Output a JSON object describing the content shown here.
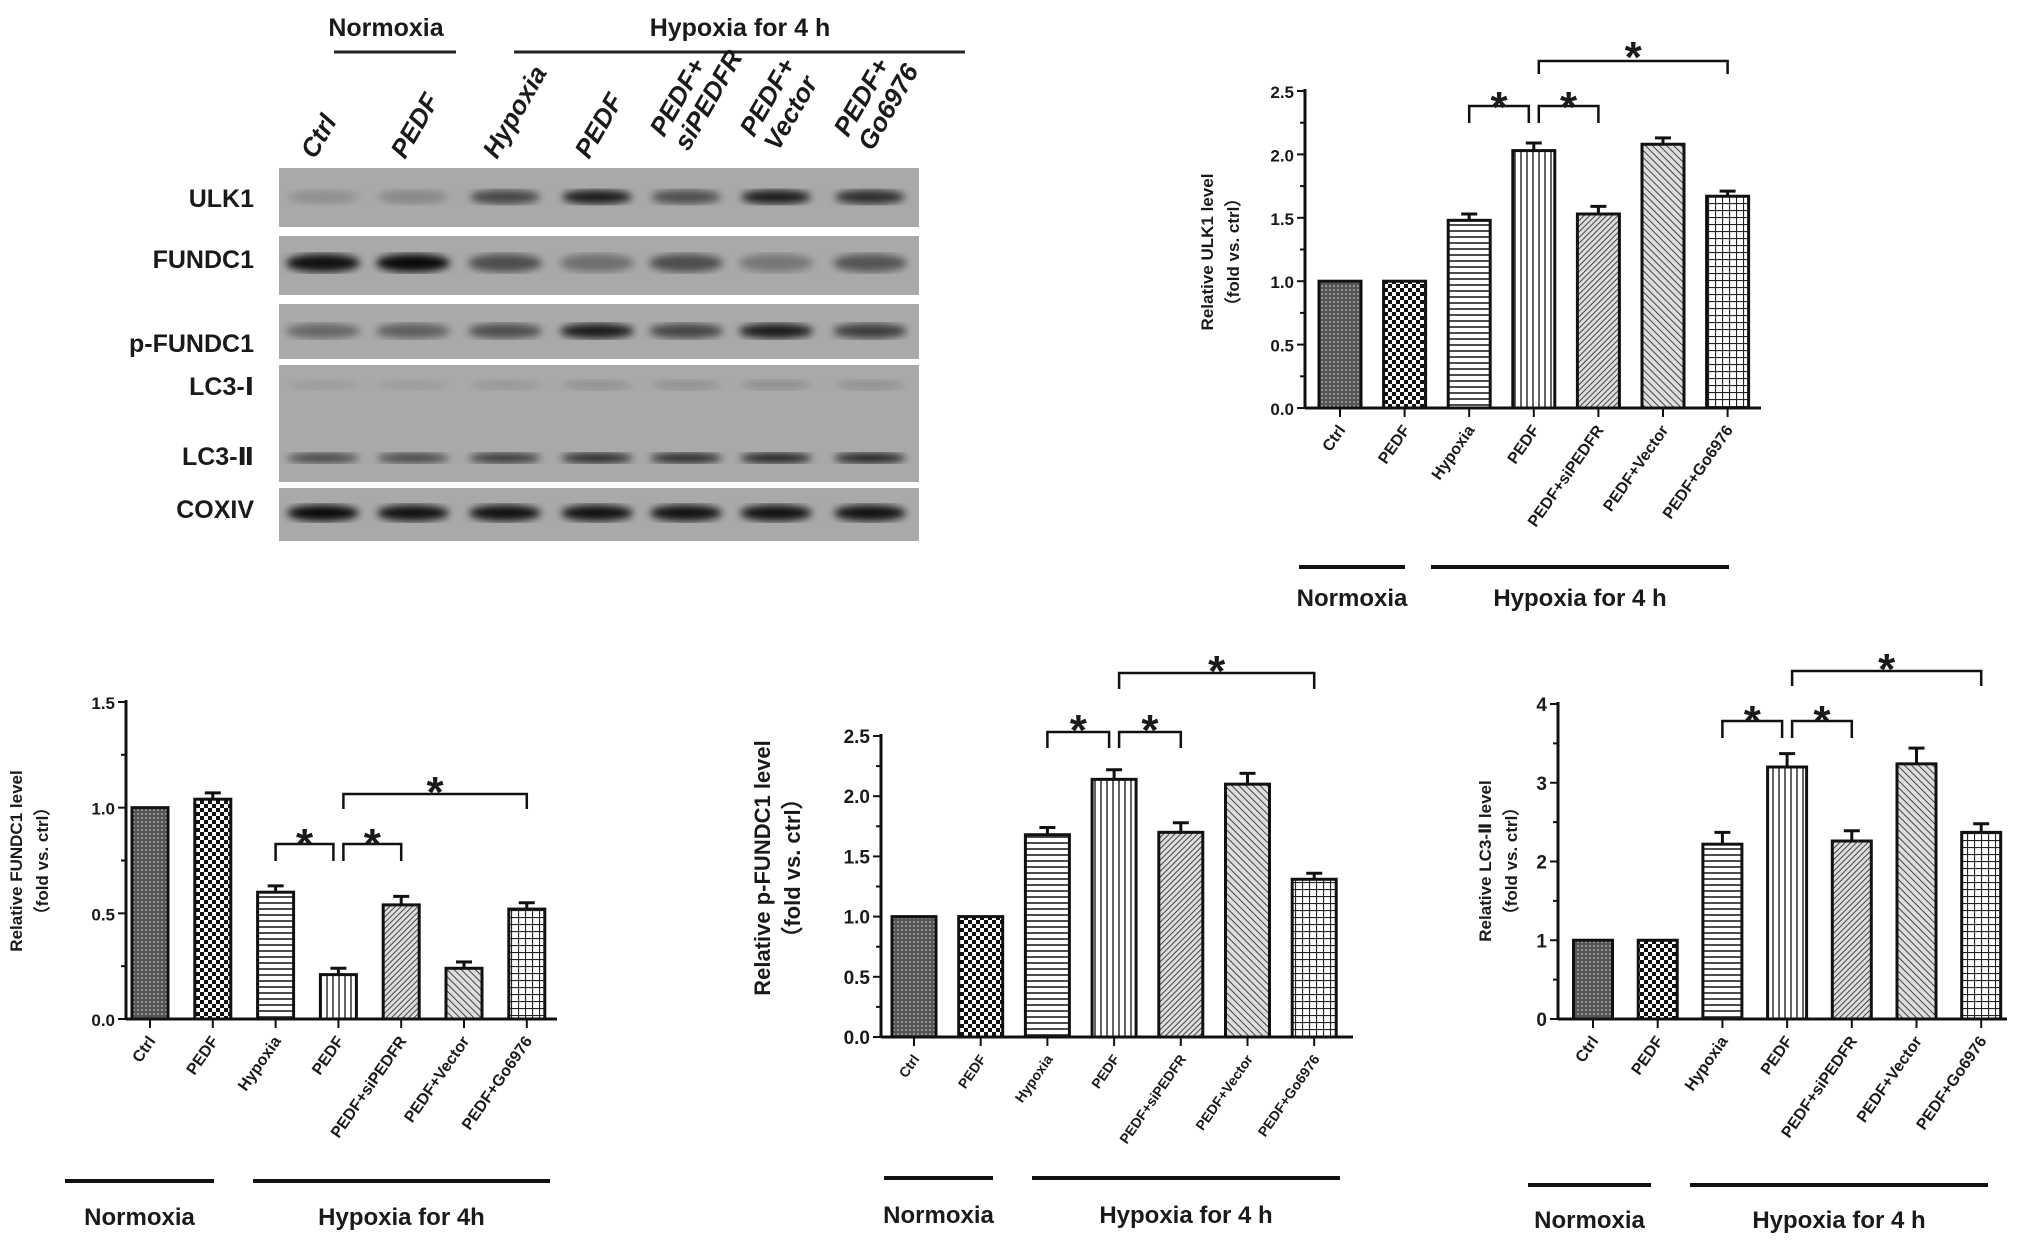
{
  "figure": {
    "blot": {
      "group_headers": [
        {
          "label": "Normoxia"
        },
        {
          "label": "Hypoxia for 4 h"
        }
      ],
      "lanes": [
        [
          "Ctrl"
        ],
        [
          "PEDF"
        ],
        [
          "Hypoxia"
        ],
        [
          "PEDF"
        ],
        [
          "PEDF+",
          "siPEDFR"
        ],
        [
          "PEDF+",
          "Vector"
        ],
        [
          "PEDF+",
          "Go6976"
        ]
      ],
      "rows": [
        {
          "label": "ULK1",
          "band_intensity": [
            0.15,
            0.2,
            0.6,
            0.85,
            0.55,
            0.85,
            0.75
          ]
        },
        {
          "label": "FUNDC1",
          "band_intensity": [
            0.9,
            0.95,
            0.55,
            0.35,
            0.55,
            0.3,
            0.5
          ]
        },
        {
          "label": "p-FUNDC1",
          "band_intensity": [
            0.4,
            0.45,
            0.55,
            0.85,
            0.6,
            0.85,
            0.65
          ]
        },
        {
          "label": "LC3-Ⅰ",
          "band_intensity": [
            0.08,
            0.08,
            0.1,
            0.14,
            0.14,
            0.16,
            0.14
          ]
        },
        {
          "label": "LC3-Ⅱ",
          "band_intensity": [
            0.6,
            0.6,
            0.7,
            0.8,
            0.8,
            0.85,
            0.85
          ]
        },
        {
          "label": "COXIV",
          "band_intensity": [
            0.95,
            0.9,
            0.9,
            0.9,
            0.9,
            0.9,
            0.9
          ]
        }
      ]
    }
  },
  "chart_data": [
    {
      "type": "bar",
      "title": "",
      "ylabel": "Relative ULK1 level",
      "ylabel_sub": "（fold vs. ctrl）",
      "categories": [
        "Ctrl",
        "PEDF",
        "Hypoxia",
        "PEDF",
        "PEDF+siPEDFR",
        "PEDF+Vector",
        "PEDF+Go6976"
      ],
      "values": [
        1.0,
        1.0,
        1.48,
        2.03,
        1.53,
        2.08,
        1.67
      ],
      "errors": [
        0,
        0,
        0.05,
        0.06,
        0.06,
        0.05,
        0.04
      ],
      "ylim": [
        0,
        2.5
      ],
      "ytick_labels": [
        "0.0",
        "0.5",
        "1.0",
        "1.5",
        "2.0",
        "2.5"
      ],
      "ytick_values": [
        0,
        0.5,
        1.0,
        1.5,
        2.0,
        2.5
      ],
      "groups": [
        {
          "label": "Normoxia",
          "span": [
            0,
            1
          ]
        },
        {
          "label": "Hypoxia for 4 h",
          "span": [
            2,
            6
          ]
        }
      ],
      "significance": [
        {
          "pair": [
            2,
            3
          ],
          "label": "*"
        },
        {
          "pair": [
            3,
            4
          ],
          "label": "*"
        },
        {
          "pair": [
            3,
            6
          ],
          "label": "*"
        }
      ]
    },
    {
      "type": "bar",
      "title": "",
      "ylabel": "Relative FUNDC1 level",
      "ylabel_sub": "（fold vs. ctrl）",
      "categories": [
        "Ctrl",
        "PEDF",
        "Hypoxia",
        "PEDF",
        "PEDF+siPEDFR",
        "PEDF+Vector",
        "PEDF+Go6976"
      ],
      "values": [
        1.0,
        1.04,
        0.6,
        0.21,
        0.54,
        0.24,
        0.52
      ],
      "errors": [
        0,
        0.03,
        0.03,
        0.03,
        0.04,
        0.03,
        0.03
      ],
      "ylim": [
        0,
        1.5
      ],
      "ytick_labels": [
        "0.0",
        "0.5",
        "1.0",
        "1.5"
      ],
      "ytick_values": [
        0,
        0.5,
        1.0,
        1.5
      ],
      "groups": [
        {
          "label": "Normoxia",
          "span": [
            0,
            1
          ]
        },
        {
          "label": "Hypoxia for 4h",
          "span": [
            2,
            6
          ]
        }
      ],
      "significance": [
        {
          "pair": [
            2,
            3
          ],
          "label": "*"
        },
        {
          "pair": [
            3,
            4
          ],
          "label": "*"
        },
        {
          "pair": [
            3,
            6
          ],
          "label": "*"
        }
      ]
    },
    {
      "type": "bar",
      "title": "",
      "ylabel": "Relative p-FUNDC1 level",
      "ylabel_sub": "（fold vs. ctrl）",
      "categories": [
        "Ctrl",
        "PEDF",
        "Hypoxia",
        "PEDF",
        "PEDF+siPEDFR",
        "PEDF+Vector",
        "PEDF+Go6976"
      ],
      "values": [
        1.0,
        1.0,
        1.68,
        2.14,
        1.7,
        2.1,
        1.31
      ],
      "errors": [
        0,
        0,
        0.06,
        0.08,
        0.08,
        0.09,
        0.05
      ],
      "ylim": [
        0,
        2.5
      ],
      "ytick_labels": [
        "0.0",
        "0.5",
        "1.0",
        "1.5",
        "2.0",
        "2.5"
      ],
      "ytick_values": [
        0,
        0.5,
        1.0,
        1.5,
        2.0,
        2.5
      ],
      "groups": [
        {
          "label": "Normoxia",
          "span": [
            0,
            1
          ]
        },
        {
          "label": "Hypoxia for 4 h",
          "span": [
            2,
            6
          ]
        }
      ],
      "significance": [
        {
          "pair": [
            2,
            3
          ],
          "label": "*"
        },
        {
          "pair": [
            3,
            4
          ],
          "label": "*"
        },
        {
          "pair": [
            3,
            6
          ],
          "label": "*"
        }
      ]
    },
    {
      "type": "bar",
      "title": "",
      "ylabel": "Relative LC3-Ⅱ level",
      "ylabel_sub": "（fold vs. ctrl）",
      "categories": [
        "Ctrl",
        "PEDF",
        "Hypoxia",
        "PEDF",
        "PEDF+siPEDFR",
        "PEDF+Vector",
        "PEDF+Go6976"
      ],
      "values": [
        1.0,
        1.0,
        2.22,
        3.2,
        2.26,
        3.24,
        2.37
      ],
      "errors": [
        0,
        0,
        0.15,
        0.17,
        0.13,
        0.2,
        0.11
      ],
      "ylim": [
        0,
        4
      ],
      "ytick_labels": [
        "0",
        "1",
        "2",
        "3",
        "4"
      ],
      "ytick_values": [
        0,
        1,
        2,
        3,
        4
      ],
      "groups": [
        {
          "label": "Normoxia",
          "span": [
            0,
            1
          ]
        },
        {
          "label": "Hypoxia for 4 h",
          "span": [
            2,
            6
          ]
        }
      ],
      "significance": [
        {
          "pair": [
            2,
            3
          ],
          "label": "*"
        },
        {
          "pair": [
            3,
            4
          ],
          "label": "*"
        },
        {
          "pair": [
            3,
            6
          ],
          "label": "*"
        }
      ]
    }
  ]
}
